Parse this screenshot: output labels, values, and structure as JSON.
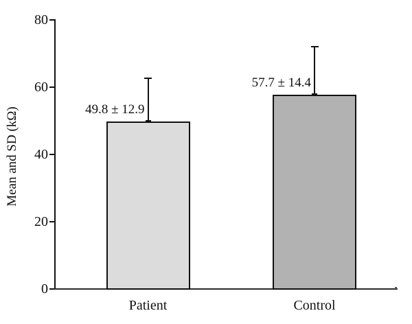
{
  "chart_data": {
    "type": "bar",
    "categories": [
      "Patient",
      "Control"
    ],
    "values": [
      49.8,
      57.7
    ],
    "errors": [
      12.9,
      14.4
    ],
    "bar_labels": [
      "49.8 ± 12.9",
      "57.7 ± 14.4"
    ],
    "bar_colors": [
      "#dcdcdc",
      "#b2b2b2"
    ],
    "title": "",
    "xlabel": "",
    "ylabel": "Mean and SD (kΩ)",
    "ylim": [
      0,
      80
    ],
    "yticks": [
      0,
      20,
      40,
      60,
      80
    ],
    "grid": "off",
    "legend": "none",
    "axis_color": "#111111",
    "background_color": "#ffffff"
  }
}
